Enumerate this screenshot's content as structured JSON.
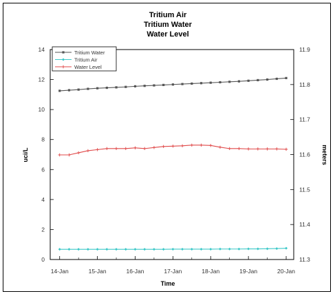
{
  "chart_data": {
    "type": "line",
    "title": [
      "Tritium Air",
      "Tritium Water",
      "Water Level"
    ],
    "xlabel": "Time",
    "ylabel_left": "uci/L",
    "ylabel_right": "meters",
    "categories": [
      "14-Jan",
      "15-Jan",
      "16-Jan",
      "17-Jan",
      "18-Jan",
      "19-Jan",
      "20-Jan"
    ],
    "x_range": [
      13.75,
      20.2
    ],
    "ylim_left": [
      0,
      14
    ],
    "yticks_left": [
      0,
      2,
      4,
      6,
      8,
      10,
      12,
      14
    ],
    "ylim_right": [
      11.3,
      11.9
    ],
    "yticks_right": [
      "11.3",
      "11.4",
      "11.5",
      "11.6",
      "11.7",
      "11.8",
      "11.9"
    ],
    "legend_position": "top-left",
    "series": [
      {
        "name": "Tritium Water",
        "axis": "left",
        "color": "#555555",
        "marker": "square",
        "x": [
          14.0,
          14.25,
          14.5,
          14.75,
          15.0,
          15.25,
          15.5,
          15.75,
          16.0,
          16.25,
          16.5,
          16.75,
          17.0,
          17.25,
          17.5,
          17.75,
          18.0,
          18.25,
          18.5,
          18.75,
          19.0,
          19.25,
          19.5,
          19.75,
          20.0
        ],
        "y": [
          11.25,
          11.29,
          11.33,
          11.38,
          11.42,
          11.45,
          11.48,
          11.51,
          11.55,
          11.58,
          11.61,
          11.64,
          11.67,
          11.7,
          11.73,
          11.76,
          11.79,
          11.82,
          11.85,
          11.88,
          11.92,
          11.96,
          12.0,
          12.05,
          12.1
        ]
      },
      {
        "name": "Tritium Air",
        "axis": "left",
        "color": "#3cc8c8",
        "marker": "diamond",
        "x": [
          14.0,
          14.25,
          14.5,
          14.75,
          15.0,
          15.25,
          15.5,
          15.75,
          16.0,
          16.25,
          16.5,
          16.75,
          17.0,
          17.25,
          17.5,
          17.75,
          18.0,
          18.25,
          18.5,
          18.75,
          19.0,
          19.25,
          19.5,
          19.75,
          20.0
        ],
        "y": [
          0.68,
          0.68,
          0.68,
          0.68,
          0.68,
          0.68,
          0.68,
          0.68,
          0.68,
          0.68,
          0.68,
          0.68,
          0.69,
          0.69,
          0.69,
          0.69,
          0.69,
          0.7,
          0.7,
          0.7,
          0.71,
          0.71,
          0.72,
          0.73,
          0.75
        ]
      },
      {
        "name": "Water Level",
        "axis": "right",
        "color": "#e04848",
        "marker": "plus",
        "x": [
          14.0,
          14.25,
          14.5,
          14.75,
          15.0,
          15.25,
          15.5,
          15.75,
          16.0,
          16.25,
          16.5,
          16.75,
          17.0,
          17.25,
          17.5,
          17.75,
          18.0,
          18.25,
          18.5,
          18.75,
          19.0,
          19.25,
          19.5,
          19.75,
          20.0
        ],
        "y": [
          11.599,
          11.599,
          11.605,
          11.611,
          11.614,
          11.617,
          11.617,
          11.617,
          11.619,
          11.617,
          11.62,
          11.623,
          11.624,
          11.625,
          11.627,
          11.627,
          11.626,
          11.621,
          11.617,
          11.617,
          11.616,
          11.616,
          11.616,
          11.616,
          11.615
        ]
      }
    ]
  }
}
